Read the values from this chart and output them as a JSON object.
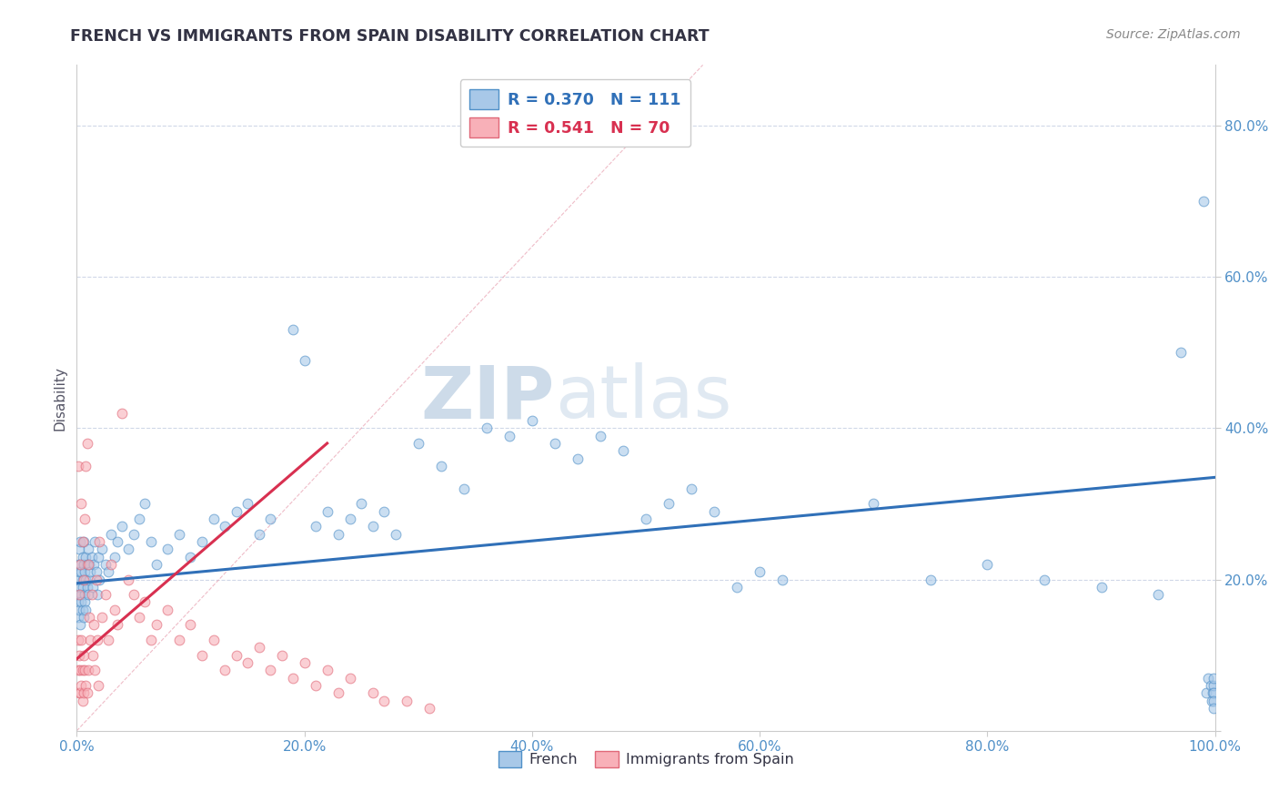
{
  "title": "FRENCH VS IMMIGRANTS FROM SPAIN DISABILITY CORRELATION CHART",
  "source": "Source: ZipAtlas.com",
  "ylabel": "Disability",
  "xlim": [
    0.0,
    1.0
  ],
  "ylim": [
    0.0,
    0.88
  ],
  "xticks": [
    0.0,
    0.2,
    0.4,
    0.6,
    0.8,
    1.0
  ],
  "xticklabels": [
    "0.0%",
    "20.0%",
    "40.0%",
    "60.0%",
    "80.0%",
    "100.0%"
  ],
  "yticks": [
    0.0,
    0.2,
    0.4,
    0.6,
    0.8
  ],
  "yticklabels": [
    "",
    "20.0%",
    "40.0%",
    "60.0%",
    "80.0%"
  ],
  "french_color": "#a8c8e8",
  "spain_color": "#f8b0b8",
  "french_edge_color": "#5090c8",
  "spain_edge_color": "#e06878",
  "french_R": 0.37,
  "french_N": 111,
  "spain_R": 0.541,
  "spain_N": 70,
  "french_line_color": "#3070b8",
  "spain_line_color": "#d83050",
  "watermark_zip": "ZIP",
  "watermark_atlas": "atlas",
  "watermark_color": "#c8d8ee",
  "grid_color": "#d0d8e8",
  "background_color": "#ffffff",
  "title_color": "#333344",
  "source_color": "#888888",
  "tick_color": "#5090c8",
  "french_x": [
    0.001,
    0.001,
    0.001,
    0.001,
    0.002,
    0.002,
    0.002,
    0.002,
    0.003,
    0.003,
    0.003,
    0.003,
    0.004,
    0.004,
    0.004,
    0.005,
    0.005,
    0.005,
    0.005,
    0.006,
    0.006,
    0.006,
    0.007,
    0.007,
    0.007,
    0.008,
    0.008,
    0.008,
    0.009,
    0.009,
    0.01,
    0.01,
    0.011,
    0.011,
    0.012,
    0.013,
    0.014,
    0.015,
    0.016,
    0.017,
    0.018,
    0.019,
    0.02,
    0.022,
    0.025,
    0.028,
    0.03,
    0.033,
    0.036,
    0.04,
    0.045,
    0.05,
    0.055,
    0.06,
    0.065,
    0.07,
    0.08,
    0.09,
    0.1,
    0.11,
    0.12,
    0.13,
    0.14,
    0.15,
    0.16,
    0.17,
    0.19,
    0.2,
    0.21,
    0.22,
    0.23,
    0.24,
    0.25,
    0.26,
    0.27,
    0.28,
    0.3,
    0.32,
    0.34,
    0.36,
    0.38,
    0.4,
    0.42,
    0.44,
    0.46,
    0.48,
    0.5,
    0.52,
    0.54,
    0.56,
    0.58,
    0.6,
    0.62,
    0.7,
    0.75,
    0.8,
    0.85,
    0.9,
    0.95,
    0.97,
    0.99,
    0.992,
    0.994,
    0.996,
    0.997,
    0.998,
    0.999,
    0.999,
    0.999,
    0.999,
    0.999
  ],
  "french_y": [
    0.17,
    0.2,
    0.22,
    0.15,
    0.18,
    0.21,
    0.16,
    0.24,
    0.19,
    0.22,
    0.14,
    0.25,
    0.18,
    0.21,
    0.17,
    0.2,
    0.23,
    0.16,
    0.19,
    0.22,
    0.15,
    0.25,
    0.18,
    0.21,
    0.17,
    0.2,
    0.23,
    0.16,
    0.19,
    0.22,
    0.18,
    0.24,
    0.2,
    0.22,
    0.21,
    0.23,
    0.19,
    0.22,
    0.25,
    0.21,
    0.18,
    0.23,
    0.2,
    0.24,
    0.22,
    0.21,
    0.26,
    0.23,
    0.25,
    0.27,
    0.24,
    0.26,
    0.28,
    0.3,
    0.25,
    0.22,
    0.24,
    0.26,
    0.23,
    0.25,
    0.28,
    0.27,
    0.29,
    0.3,
    0.26,
    0.28,
    0.53,
    0.49,
    0.27,
    0.29,
    0.26,
    0.28,
    0.3,
    0.27,
    0.29,
    0.26,
    0.38,
    0.35,
    0.32,
    0.4,
    0.39,
    0.41,
    0.38,
    0.36,
    0.39,
    0.37,
    0.28,
    0.3,
    0.32,
    0.29,
    0.19,
    0.21,
    0.2,
    0.3,
    0.2,
    0.22,
    0.2,
    0.19,
    0.18,
    0.5,
    0.7,
    0.05,
    0.07,
    0.06,
    0.04,
    0.05,
    0.06,
    0.07,
    0.05,
    0.04,
    0.03
  ],
  "spain_x": [
    0.001,
    0.001,
    0.001,
    0.002,
    0.002,
    0.002,
    0.003,
    0.003,
    0.003,
    0.004,
    0.004,
    0.004,
    0.005,
    0.005,
    0.005,
    0.006,
    0.006,
    0.006,
    0.007,
    0.007,
    0.008,
    0.008,
    0.009,
    0.009,
    0.01,
    0.01,
    0.011,
    0.012,
    0.013,
    0.014,
    0.015,
    0.016,
    0.017,
    0.018,
    0.019,
    0.02,
    0.022,
    0.025,
    0.028,
    0.03,
    0.033,
    0.036,
    0.04,
    0.045,
    0.05,
    0.055,
    0.06,
    0.065,
    0.07,
    0.08,
    0.09,
    0.1,
    0.11,
    0.12,
    0.13,
    0.14,
    0.15,
    0.16,
    0.17,
    0.18,
    0.19,
    0.2,
    0.21,
    0.22,
    0.23,
    0.24,
    0.26,
    0.27,
    0.29,
    0.31
  ],
  "spain_y": [
    0.35,
    0.12,
    0.08,
    0.18,
    0.1,
    0.05,
    0.22,
    0.08,
    0.05,
    0.3,
    0.12,
    0.06,
    0.25,
    0.08,
    0.04,
    0.2,
    0.1,
    0.05,
    0.28,
    0.08,
    0.35,
    0.06,
    0.38,
    0.05,
    0.22,
    0.08,
    0.15,
    0.12,
    0.18,
    0.1,
    0.14,
    0.08,
    0.2,
    0.12,
    0.06,
    0.25,
    0.15,
    0.18,
    0.12,
    0.22,
    0.16,
    0.14,
    0.42,
    0.2,
    0.18,
    0.15,
    0.17,
    0.12,
    0.14,
    0.16,
    0.12,
    0.14,
    0.1,
    0.12,
    0.08,
    0.1,
    0.09,
    0.11,
    0.08,
    0.1,
    0.07,
    0.09,
    0.06,
    0.08,
    0.05,
    0.07,
    0.05,
    0.04,
    0.04,
    0.03
  ],
  "french_trend_x": [
    0.0,
    1.0
  ],
  "french_trend_y": [
    0.195,
    0.335
  ],
  "spain_trend_x": [
    0.0,
    0.22
  ],
  "spain_trend_y": [
    0.095,
    0.38
  ]
}
